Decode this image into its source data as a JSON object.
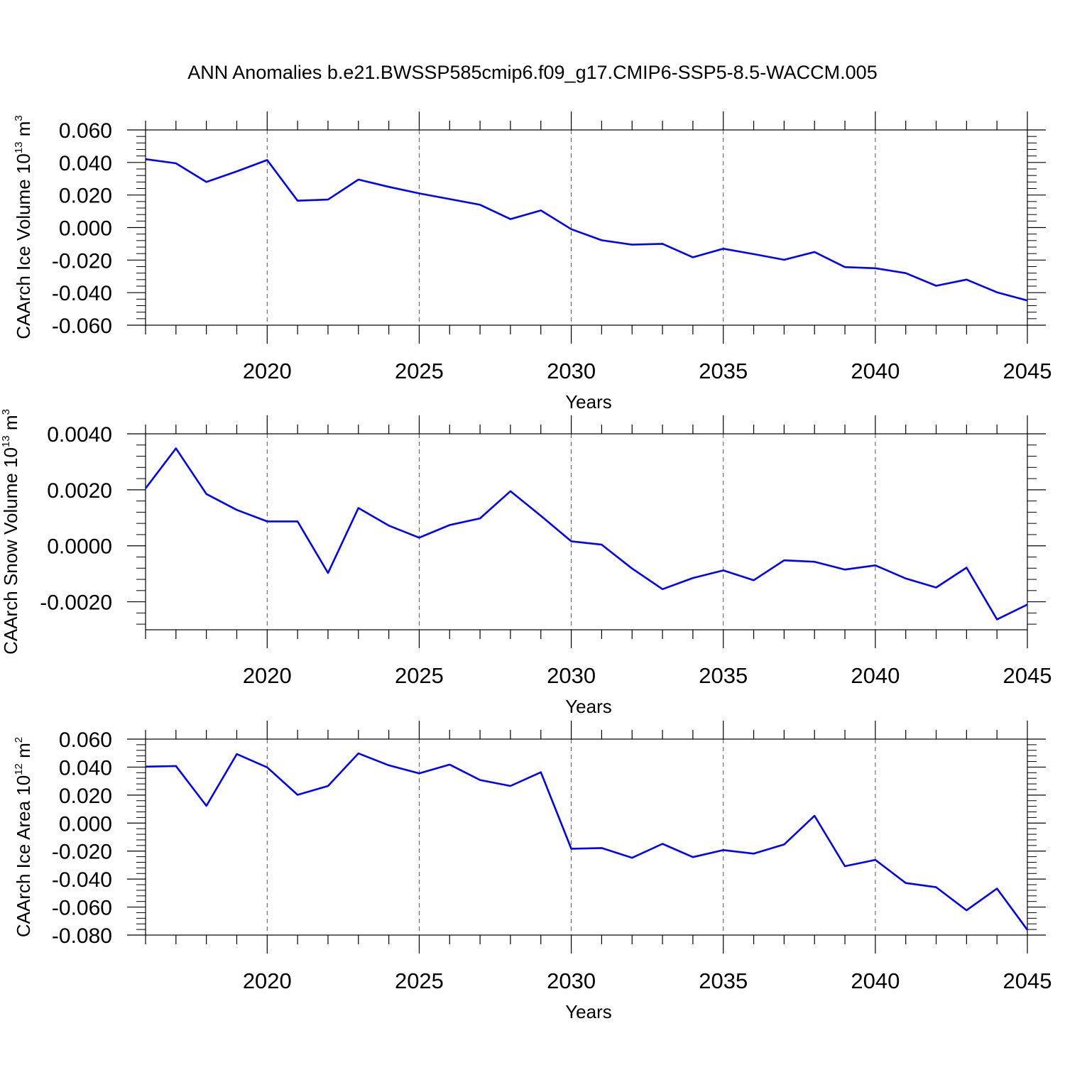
{
  "title": "ANN Anomalies b.e21.BWSSP585cmip6.f09_g17.CMIP6-SSP5-8.5-WACCM.005",
  "colors": {
    "line": "#0000ff",
    "axis": "#000000",
    "grid": "#555555"
  },
  "chart_data": [
    {
      "type": "line",
      "ylabel": {
        "text": "CAArch Ice Volume 10",
        "sup": "13",
        "unit": " m",
        "unit_sup": "3"
      },
      "xlabel": "Years",
      "xlim": [
        2016,
        2045
      ],
      "ylim": [
        -0.06,
        0.06
      ],
      "yticks": [
        -0.06,
        -0.04,
        -0.02,
        0.0,
        0.02,
        0.04,
        0.06
      ],
      "ytick_labels": [
        "-0.060",
        "-0.040",
        "-0.020",
        "0.000",
        "0.020",
        "0.040",
        "0.060"
      ],
      "xticks": [
        2020,
        2025,
        2030,
        2035,
        2040,
        2045
      ],
      "xtick_labels": [
        "2020",
        "2025",
        "2030",
        "2035",
        "2040",
        "2045"
      ],
      "x": [
        2016,
        2017,
        2018,
        2019,
        2020,
        2021,
        2022,
        2023,
        2024,
        2025,
        2026,
        2027,
        2028,
        2029,
        2030,
        2031,
        2032,
        2033,
        2034,
        2035,
        2036,
        2037,
        2038,
        2039,
        2040,
        2041,
        2042,
        2043,
        2044,
        2045
      ],
      "values": [
        0.042,
        0.0395,
        0.028,
        0.0345,
        0.0415,
        0.0165,
        0.0172,
        0.0295,
        0.025,
        0.021,
        0.0175,
        0.014,
        0.0052,
        0.0105,
        -0.001,
        -0.0078,
        -0.0105,
        -0.01,
        -0.0183,
        -0.013,
        -0.0163,
        -0.0198,
        -0.015,
        -0.0243,
        -0.025,
        -0.028,
        -0.0358,
        -0.032,
        -0.0398,
        -0.0448
      ]
    },
    {
      "type": "line",
      "ylabel": {
        "text": "CAArch Snow Volume 10",
        "sup": "13",
        "unit": " m",
        "unit_sup": "3"
      },
      "xlabel": "Years",
      "xlim": [
        2016,
        2045
      ],
      "ylim": [
        -0.003,
        0.004
      ],
      "yticks": [
        -0.002,
        0.0,
        0.002,
        0.004
      ],
      "ytick_labels": [
        "-0.0020",
        "0.0000",
        "0.0020",
        "0.0040"
      ],
      "xticks": [
        2020,
        2025,
        2030,
        2035,
        2040,
        2045
      ],
      "xtick_labels": [
        "2020",
        "2025",
        "2030",
        "2035",
        "2040",
        "2045"
      ],
      "x": [
        2016,
        2017,
        2018,
        2019,
        2020,
        2021,
        2022,
        2023,
        2024,
        2025,
        2026,
        2027,
        2028,
        2029,
        2030,
        2031,
        2032,
        2033,
        2034,
        2035,
        2036,
        2037,
        2038,
        2039,
        2040,
        2041,
        2042,
        2043,
        2044,
        2045
      ],
      "values": [
        0.00205,
        0.00348,
        0.00185,
        0.00128,
        0.00087,
        0.00087,
        -0.00097,
        0.00135,
        0.00072,
        0.00029,
        0.00074,
        0.00098,
        0.00195,
        0.00107,
        0.00016,
        4e-05,
        -0.00081,
        -0.00155,
        -0.00115,
        -0.00088,
        -0.00123,
        -0.00052,
        -0.00057,
        -0.00085,
        -0.0007,
        -0.00117,
        -0.00149,
        -0.00078,
        -0.00263,
        -0.0021
      ]
    },
    {
      "type": "line",
      "ylabel": {
        "text": "CAArch Ice Area 10",
        "sup": "12",
        "unit": " m",
        "unit_sup": "2"
      },
      "xlabel": "Years",
      "xlim": [
        2016,
        2045
      ],
      "ylim": [
        -0.08,
        0.06
      ],
      "yticks": [
        -0.08,
        -0.06,
        -0.04,
        -0.02,
        0.0,
        0.02,
        0.04,
        0.06
      ],
      "ytick_labels": [
        "-0.080",
        "-0.060",
        "-0.040",
        "-0.020",
        "0.000",
        "0.020",
        "0.040",
        "0.060"
      ],
      "xticks": [
        2020,
        2025,
        2030,
        2035,
        2040,
        2045
      ],
      "xtick_labels": [
        "2020",
        "2025",
        "2030",
        "2035",
        "2040",
        "2045"
      ],
      "x": [
        2016,
        2017,
        2018,
        2019,
        2020,
        2021,
        2022,
        2023,
        2024,
        2025,
        2026,
        2027,
        2028,
        2029,
        2030,
        2031,
        2032,
        2033,
        2034,
        2035,
        2036,
        2037,
        2038,
        2039,
        2040,
        2041,
        2042,
        2043,
        2044,
        2045
      ],
      "values": [
        0.0403,
        0.0408,
        0.0123,
        0.0493,
        0.0398,
        0.0202,
        0.0265,
        0.0498,
        0.0413,
        0.0355,
        0.0418,
        0.0308,
        0.0265,
        0.0363,
        -0.0183,
        -0.0178,
        -0.0248,
        -0.0148,
        -0.0243,
        -0.0193,
        -0.0218,
        -0.0153,
        0.0052,
        -0.0308,
        -0.0263,
        -0.0428,
        -0.0458,
        -0.0623,
        -0.0468,
        -0.0763
      ]
    }
  ]
}
